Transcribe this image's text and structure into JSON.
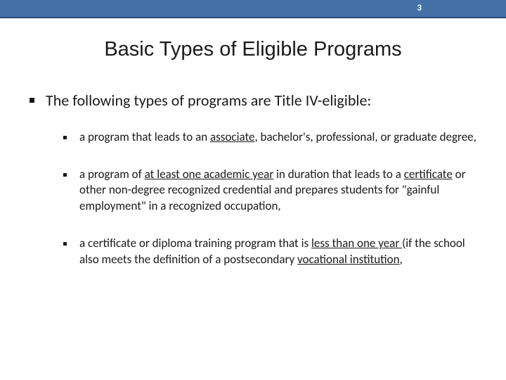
{
  "header": {
    "page_number": "3",
    "bar_color": "#4472a8",
    "bar_border": "#2a4a78"
  },
  "title": "Basic Types of Eligible Programs",
  "main_item": {
    "text": "The following types of programs are Title IV-eligible:"
  },
  "sub_items": [
    {
      "segments": [
        {
          "t": "a program that leads to an ",
          "u": false
        },
        {
          "t": "associate",
          "u": true
        },
        {
          "t": ", bachelor's, professional, or graduate degree,",
          "u": false
        }
      ]
    },
    {
      "segments": [
        {
          "t": "a program of ",
          "u": false
        },
        {
          "t": "at least one academic year",
          "u": true
        },
        {
          "t": " in duration that leads to a ",
          "u": false
        },
        {
          "t": "certificate",
          "u": true
        },
        {
          "t": " or other non-degree recognized credential and prepares students for \"gainful employment\" in a recognized occupation,",
          "u": false
        }
      ]
    },
    {
      "segments": [
        {
          "t": "a certificate or diploma training program that is ",
          "u": false
        },
        {
          "t": "less than one year ",
          "u": true
        },
        {
          "t": "(if the school also meets the definition of a postsecondary ",
          "u": false
        },
        {
          "t": "vocational institution",
          "u": true
        },
        {
          "t": ",",
          "u": false
        }
      ]
    }
  ],
  "style": {
    "title_fontsize": 29,
    "main_fontsize": 22,
    "sub_fontsize": 17,
    "text_color": "#1a1a1a",
    "background": "#ffffff"
  }
}
